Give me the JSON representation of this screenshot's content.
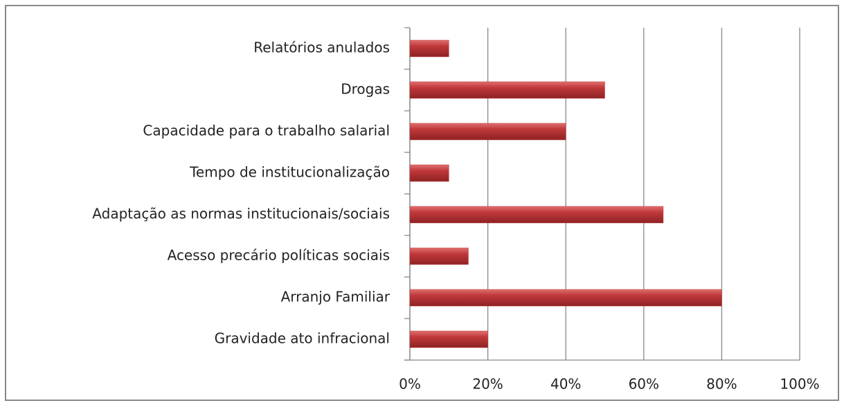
{
  "chart_data": {
    "type": "bar",
    "orientation": "horizontal",
    "categories": [
      "Relatórios anulados",
      "Drogas",
      "Capacidade para o trabalho salarial",
      "Tempo de institucionalização",
      "Adaptação as normas institucionais/sociais",
      "Acesso precário políticas sociais",
      "Arranjo Familiar",
      "Gravidade ato infracional"
    ],
    "values": [
      10,
      50,
      40,
      10,
      65,
      15,
      80,
      20
    ],
    "color": "#c0393b",
    "xlim": [
      0,
      100
    ],
    "xticks": [
      {
        "value": 0,
        "label": "0%"
      },
      {
        "value": 20,
        "label": "20%"
      },
      {
        "value": 40,
        "label": "40%"
      },
      {
        "value": 60,
        "label": "60%"
      },
      {
        "value": 80,
        "label": "80%"
      },
      {
        "value": 100,
        "label": "100%"
      }
    ],
    "grid": true
  }
}
